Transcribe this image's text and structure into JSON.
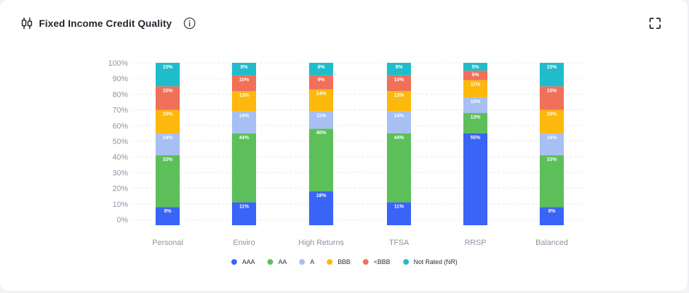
{
  "card": {
    "title": "Fixed Income Credit Quality",
    "info_icon": "info-icon",
    "expand_icon": "expand-icon",
    "title_icon": "candlestick-icon"
  },
  "colors": {
    "AAA": "#3a64f5",
    "AA": "#5dbf5a",
    "A": "#a7bff2",
    "BBB": "#fdb80d",
    "<BBB": "#f0705a",
    "Not Rated (NR)": "#21bcca"
  },
  "chart_data": {
    "type": "bar",
    "stacked": true,
    "title": "Fixed Income Credit Quality",
    "categories": [
      "Personal",
      "Enviro",
      "High Returns",
      "TFSA",
      "RRSP",
      "Balanced"
    ],
    "ylim": [
      0,
      100
    ],
    "yticks": [
      "0%",
      "10%",
      "20%",
      "30%",
      "40%",
      "50%",
      "60%",
      "70%",
      "80%",
      "90%",
      "100%"
    ],
    "grid": true,
    "legend_position": "bottom",
    "series": [
      {
        "name": "AAA",
        "values": [
          8,
          11,
          18,
          11,
          55,
          8
        ],
        "labels": [
          "8%",
          "11%",
          "18%",
          "11%",
          "55%",
          "8%"
        ]
      },
      {
        "name": "AA",
        "values": [
          33,
          44,
          40,
          44,
          13,
          33
        ],
        "labels": [
          "33%",
          "44%",
          "40%",
          "44%",
          "13%",
          "33%"
        ]
      },
      {
        "name": "A",
        "values": [
          14,
          14,
          11,
          14,
          10,
          14
        ],
        "labels": [
          "14%",
          "14%",
          "11%",
          "14%",
          "10%",
          "14%"
        ]
      },
      {
        "name": "BBB",
        "values": [
          15,
          13,
          14,
          13,
          11,
          15
        ],
        "labels": [
          "15%",
          "13%",
          "14%",
          "13%",
          "11%",
          "15%"
        ]
      },
      {
        "name": "<BBB",
        "values": [
          15,
          10,
          9,
          10,
          6,
          15
        ],
        "labels": [
          "15%",
          "10%",
          "9%",
          "10%",
          "6%",
          "15%"
        ]
      },
      {
        "name": "Not Rated (NR)",
        "values": [
          15,
          8,
          8,
          8,
          5,
          15
        ],
        "labels": [
          "15%",
          "8%",
          "8%",
          "8%",
          "5%",
          "15%"
        ]
      }
    ]
  }
}
